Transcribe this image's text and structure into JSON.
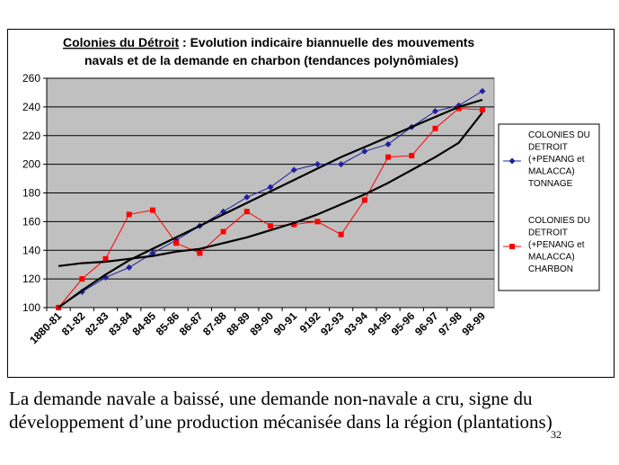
{
  "chart_data": {
    "type": "line",
    "title_line1_prefix": "Colonies du Détroit",
    "title_line1_rest": " : Evolution indicaire biannuelle des mouvements",
    "title_line2": "navals et de la demande en charbon (tendances polynômiales)",
    "categories": [
      "1880-81",
      "81-82",
      "82-83",
      "83-84",
      "84-85",
      "85-86",
      "86-87",
      "87-88",
      "88-89",
      "89-90",
      "90-91",
      "9192",
      "92-93",
      "93-94",
      "94-95",
      "95-96",
      "96-97",
      "97-98",
      "98-99"
    ],
    "ylim": [
      100,
      260
    ],
    "yticks": [
      "100",
      "120",
      "140",
      "160",
      "180",
      "200",
      "220",
      "240",
      "260"
    ],
    "grid": true,
    "legend_position": "right",
    "series": [
      {
        "name": "COLONIES DU DETROIT (+PENANG et MALACCA) TONNAGE",
        "legend_lines": [
          "COLONIES DU",
          "DETROIT",
          "(+PENANG et",
          "MALACCA)",
          "TONNAGE"
        ],
        "color": "#1f1f9f",
        "marker": "diamond",
        "values": [
          100,
          111,
          121,
          128,
          138,
          147,
          157,
          167,
          177,
          184,
          196,
          200,
          200,
          209,
          214,
          226,
          237,
          241,
          251
        ]
      },
      {
        "name": "COLONIES DU DETROIT (+PENANG et MALACCA) CHARBON",
        "legend_lines": [
          "COLONIES DU",
          "DETROIT",
          "(+PENANG et",
          "MALACCA)",
          "CHARBON"
        ],
        "color": "#ff0000",
        "marker": "square",
        "values": [
          100,
          120,
          134,
          165,
          168,
          145,
          138,
          153,
          167,
          157,
          158,
          160,
          151,
          175,
          205,
          206,
          225,
          239,
          238
        ]
      }
    ],
    "trendlines": [
      {
        "type": "polynomial",
        "color": "#000000",
        "values": [
          100,
          112,
          123,
          133,
          141,
          149,
          157,
          165,
          173,
          181,
          189,
          197,
          205,
          212,
          219,
          226,
          233,
          240,
          245
        ]
      },
      {
        "type": "polynomial",
        "color": "#000000",
        "values": [
          129,
          131,
          132,
          134,
          136,
          139,
          141,
          145,
          149,
          154,
          159,
          165,
          172,
          179,
          187,
          196,
          205,
          215,
          236
        ]
      }
    ],
    "plot_bg": "#c0c0c0"
  },
  "caption": {
    "line1": "La demande navale a baissé, une demande non-navale a cru, signe du",
    "line2": "développement d’une production mécanisée dans la région (plantations)"
  },
  "slide_number": "32"
}
